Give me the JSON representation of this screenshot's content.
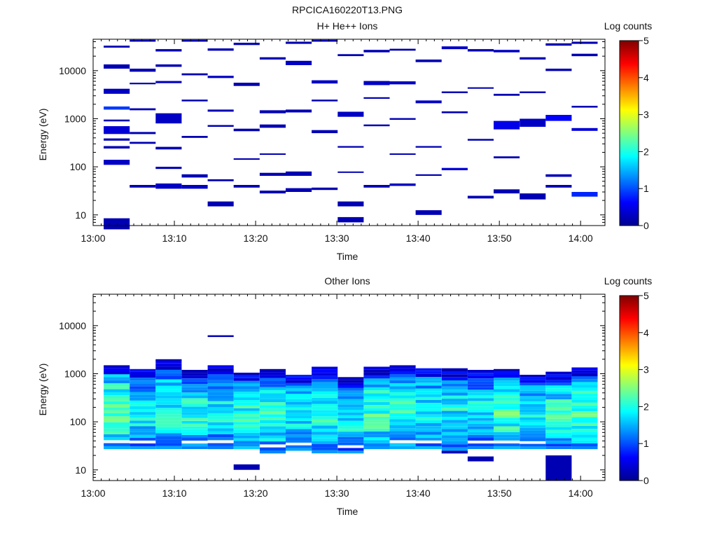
{
  "figure_title": "RPCICA160220T13.PNG",
  "colorbar": {
    "label": "Log counts",
    "ticks": [
      "0",
      "1",
      "2",
      "3",
      "4",
      "5"
    ],
    "stops": [
      "#00008f",
      "#0000ff",
      "#0080ff",
      "#00ffff",
      "#80ff80",
      "#ffff00",
      "#ff8000",
      "#ff0000",
      "#800000"
    ]
  },
  "chart_data": [
    {
      "type": "heatmap",
      "title": "H+ He++ Ions",
      "xlabel": "Time",
      "ylabel": "Energy (eV)",
      "x_ticks": [
        "13:00",
        "13:10",
        "13:20",
        "13:30",
        "13:40",
        "13:50",
        "14:00"
      ],
      "y_ticks": [
        "10",
        "100",
        "1000",
        "10000"
      ],
      "ylim": [
        6,
        45000
      ],
      "y_scale": "log",
      "xlim_minutes": [
        0,
        63
      ],
      "z_label": "Log counts",
      "z_range": [
        0,
        5
      ],
      "cells": [
        [
          1.3,
          4.5,
          5,
          8.5,
          0.2
        ],
        [
          1.3,
          4.5,
          110,
          140,
          0.3
        ],
        [
          1.3,
          4.5,
          480,
          700,
          0.4
        ],
        [
          1.3,
          4.5,
          3300,
          4200,
          0.3
        ],
        [
          1.3,
          4.5,
          1550,
          1800,
          0.9
        ],
        [
          1.3,
          4.5,
          11000,
          13500,
          0.2
        ],
        [
          1.3,
          4.5,
          240,
          270,
          0.2
        ],
        [
          1.3,
          4.5,
          350,
          390,
          0.2
        ],
        [
          1.3,
          4.5,
          880,
          960,
          0.2
        ],
        [
          1.3,
          4.5,
          30000,
          33000,
          0.2
        ],
        [
          4.5,
          7.7,
          37,
          42,
          0.2
        ],
        [
          4.5,
          7.7,
          9500,
          11000,
          0.2
        ],
        [
          4.5,
          7.7,
          40000,
          44000,
          0.2
        ],
        [
          4.5,
          7.7,
          480,
          530,
          0.2
        ],
        [
          4.5,
          7.7,
          300,
          330,
          0.2
        ],
        [
          4.5,
          7.7,
          1500,
          1650,
          0.2
        ],
        [
          4.5,
          7.7,
          5200,
          5600,
          0.2
        ],
        [
          7.7,
          10.9,
          35,
          45,
          0.3
        ],
        [
          7.7,
          10.9,
          800,
          1300,
          0.3
        ],
        [
          7.7,
          10.9,
          230,
          260,
          0.2
        ],
        [
          7.7,
          10.9,
          5500,
          6100,
          0.3
        ],
        [
          7.7,
          10.9,
          25000,
          28000,
          0.2
        ],
        [
          7.7,
          10.9,
          12000,
          13500,
          0.2
        ],
        [
          7.7,
          10.9,
          90,
          100,
          0.2
        ],
        [
          10.9,
          14.1,
          35,
          42,
          0.3
        ],
        [
          10.9,
          14.1,
          60,
          70,
          0.2
        ],
        [
          10.9,
          14.1,
          400,
          440,
          0.2
        ],
        [
          10.9,
          14.1,
          2300,
          2500,
          0.2
        ],
        [
          10.9,
          14.1,
          40000,
          44000,
          0.2
        ],
        [
          10.9,
          14.1,
          8000,
          8800,
          0.2
        ],
        [
          14.1,
          17.3,
          15,
          19,
          0.2
        ],
        [
          14.1,
          17.3,
          50,
          55,
          0.2
        ],
        [
          14.1,
          17.3,
          680,
          740,
          0.2
        ],
        [
          14.1,
          17.3,
          7000,
          7800,
          0.3
        ],
        [
          14.1,
          17.3,
          26000,
          29000,
          0.2
        ],
        [
          14.1,
          17.3,
          1400,
          1550,
          0.2
        ],
        [
          17.3,
          20.5,
          37,
          42,
          0.2
        ],
        [
          17.3,
          20.5,
          140,
          150,
          0.2
        ],
        [
          17.3,
          20.5,
          4800,
          5600,
          0.2
        ],
        [
          17.3,
          20.5,
          34000,
          38000,
          0.2
        ],
        [
          17.3,
          20.5,
          550,
          620,
          0.2
        ],
        [
          20.5,
          23.7,
          28,
          32,
          0.2
        ],
        [
          20.5,
          23.7,
          65,
          75,
          0.2
        ],
        [
          20.5,
          23.7,
          180,
          190,
          0.2
        ],
        [
          20.5,
          23.7,
          1300,
          1500,
          0.2
        ],
        [
          20.5,
          23.7,
          17000,
          19000,
          0.2
        ],
        [
          20.5,
          23.7,
          650,
          760,
          0.2
        ],
        [
          23.7,
          26.9,
          30,
          36,
          0.2
        ],
        [
          23.7,
          26.9,
          65,
          80,
          0.2
        ],
        [
          23.7,
          26.9,
          1350,
          1550,
          0.2
        ],
        [
          23.7,
          26.9,
          13000,
          16000,
          0.3
        ],
        [
          23.7,
          26.9,
          36000,
          40000,
          0.2
        ],
        [
          26.9,
          30.1,
          33,
          37,
          0.2
        ],
        [
          26.9,
          30.1,
          500,
          580,
          0.2
        ],
        [
          26.9,
          30.1,
          5400,
          6300,
          0.3
        ],
        [
          26.9,
          30.1,
          40000,
          44000,
          0.2
        ],
        [
          26.9,
          30.1,
          2300,
          2500,
          0.2
        ],
        [
          30.1,
          33.3,
          7,
          9,
          0.2
        ],
        [
          30.1,
          33.3,
          15,
          19,
          0.2
        ],
        [
          30.1,
          33.3,
          1100,
          1400,
          0.3
        ],
        [
          30.1,
          33.3,
          250,
          270,
          0.2
        ],
        [
          30.1,
          33.3,
          20000,
          22000,
          0.2
        ],
        [
          30.1,
          33.3,
          75,
          80,
          0.2
        ],
        [
          33.3,
          36.5,
          37,
          42,
          0.2
        ],
        [
          33.3,
          36.5,
          5000,
          6100,
          0.3
        ],
        [
          33.3,
          36.5,
          24000,
          27000,
          0.2
        ],
        [
          33.3,
          36.5,
          2600,
          2800,
          0.2
        ],
        [
          33.3,
          36.5,
          700,
          760,
          0.2
        ],
        [
          36.5,
          39.7,
          40,
          45,
          0.3
        ],
        [
          36.5,
          39.7,
          5200,
          6000,
          0.3
        ],
        [
          36.5,
          39.7,
          180,
          190,
          0.2
        ],
        [
          36.5,
          39.7,
          950,
          1030,
          0.2
        ],
        [
          36.5,
          39.7,
          26000,
          28500,
          0.2
        ],
        [
          39.7,
          42.9,
          10,
          12.5,
          0.2
        ],
        [
          39.7,
          42.9,
          65,
          70,
          0.2
        ],
        [
          39.7,
          42.9,
          2100,
          2400,
          0.3
        ],
        [
          39.7,
          42.9,
          15000,
          17000,
          0.2
        ],
        [
          39.7,
          42.9,
          250,
          270,
          0.2
        ],
        [
          42.9,
          46.1,
          85,
          95,
          0.4
        ],
        [
          42.9,
          46.1,
          28000,
          32000,
          0.3
        ],
        [
          42.9,
          46.1,
          3400,
          3700,
          0.2
        ],
        [
          42.9,
          46.1,
          1300,
          1420,
          0.2
        ],
        [
          46.1,
          49.3,
          22,
          25,
          0.2
        ],
        [
          46.1,
          49.3,
          350,
          380,
          0.2
        ],
        [
          46.1,
          49.3,
          25000,
          28000,
          0.2
        ],
        [
          46.1,
          49.3,
          4200,
          4500,
          0.2
        ],
        [
          49.3,
          52.5,
          28,
          34,
          0.2
        ],
        [
          49.3,
          52.5,
          600,
          900,
          0.5
        ],
        [
          49.3,
          52.5,
          24000,
          27000,
          0.3
        ],
        [
          49.3,
          52.5,
          3000,
          3300,
          0.2
        ],
        [
          49.3,
          52.5,
          150,
          165,
          0.2
        ],
        [
          52.5,
          55.7,
          21,
          28,
          0.2
        ],
        [
          52.5,
          55.7,
          680,
          1000,
          0.3
        ],
        [
          52.5,
          55.7,
          17000,
          19000,
          0.2
        ],
        [
          52.5,
          55.7,
          3400,
          3700,
          0.2
        ],
        [
          55.7,
          58.9,
          37,
          42,
          0.2
        ],
        [
          55.7,
          58.9,
          62,
          70,
          0.2
        ],
        [
          55.7,
          58.9,
          900,
          1200,
          0.6
        ],
        [
          55.7,
          58.9,
          33000,
          37000,
          0.2
        ],
        [
          55.7,
          58.9,
          9800,
          11000,
          0.2
        ],
        [
          58.9,
          62.1,
          24,
          30,
          0.8
        ],
        [
          58.9,
          62.1,
          560,
          640,
          0.4
        ],
        [
          58.9,
          62.1,
          36000,
          40000,
          0.2
        ],
        [
          58.9,
          62.1,
          20000,
          22500,
          0.2
        ],
        [
          58.9,
          62.1,
          1700,
          1850,
          0.2
        ]
      ]
    },
    {
      "type": "heatmap",
      "title": "Other Ions",
      "xlabel": "Time",
      "ylabel": "Energy (eV)",
      "x_ticks": [
        "13:00",
        "13:10",
        "13:20",
        "13:30",
        "13:40",
        "13:50",
        "14:00"
      ],
      "y_ticks": [
        "10",
        "100",
        "1000",
        "10000"
      ],
      "ylim": [
        6,
        45000
      ],
      "y_scale": "log",
      "xlim_minutes": [
        0,
        63
      ],
      "z_label": "Log counts",
      "z_range": [
        0,
        5
      ],
      "columns": [
        {
          "t0": 1.3,
          "t1": 4.5,
          "bottom": 27,
          "top": 1500,
          "peak": 2.5
        },
        {
          "t0": 4.5,
          "t1": 7.7,
          "bottom": 27,
          "top": 1250,
          "peak": 2.0
        },
        {
          "t0": 7.7,
          "t1": 10.9,
          "bottom": 27,
          "top": 1900,
          "peak": 2.1
        },
        {
          "t0": 10.9,
          "t1": 14.1,
          "bottom": 27,
          "top": 1200,
          "peak": 2.2
        },
        {
          "t0": 14.1,
          "t1": 17.3,
          "bottom": 27,
          "top": 1500,
          "peak": 2.0
        },
        {
          "t0": 17.3,
          "t1": 20.5,
          "bottom": 27,
          "top": 1050,
          "peak": 2.1
        },
        {
          "t0": 20.5,
          "t1": 23.7,
          "bottom": 22,
          "top": 1250,
          "peak": 2.2
        },
        {
          "t0": 23.7,
          "t1": 26.9,
          "bottom": 25,
          "top": 950,
          "peak": 2.0
        },
        {
          "t0": 26.9,
          "t1": 30.1,
          "bottom": 22,
          "top": 1400,
          "peak": 2.1
        },
        {
          "t0": 30.1,
          "t1": 33.3,
          "bottom": 22,
          "top": 850,
          "peak": 2.0
        },
        {
          "t0": 33.3,
          "t1": 36.5,
          "bottom": 27,
          "top": 1400,
          "peak": 2.3
        },
        {
          "t0": 36.5,
          "t1": 39.7,
          "bottom": 27,
          "top": 1500,
          "peak": 2.2
        },
        {
          "t0": 39.7,
          "t1": 42.9,
          "bottom": 27,
          "top": 1300,
          "peak": 2.1
        },
        {
          "t0": 42.9,
          "t1": 46.1,
          "bottom": 22,
          "top": 1300,
          "peak": 2.0
        },
        {
          "t0": 46.1,
          "t1": 49.3,
          "bottom": 27,
          "top": 1200,
          "peak": 2.0
        },
        {
          "t0": 49.3,
          "t1": 52.5,
          "bottom": 27,
          "top": 1250,
          "peak": 2.3
        },
        {
          "t0": 52.5,
          "t1": 55.7,
          "bottom": 27,
          "top": 950,
          "peak": 2.1
        },
        {
          "t0": 55.7,
          "t1": 58.9,
          "bottom": 27,
          "top": 1100,
          "peak": 2.2
        },
        {
          "t0": 58.9,
          "t1": 62.1,
          "bottom": 27,
          "top": 1350,
          "peak": 2.4
        }
      ],
      "extra_cells": [
        [
          14.1,
          17.3,
          5800,
          6300,
          0.2
        ],
        [
          7.7,
          10.9,
          1850,
          2000,
          0.2
        ],
        [
          17.3,
          20.5,
          10,
          13,
          0.2
        ],
        [
          46.1,
          49.3,
          15,
          19,
          0.2
        ],
        [
          55.7,
          58.9,
          6,
          20,
          0.2
        ],
        [
          42.9,
          46.1,
          22,
          25,
          0.2
        ]
      ]
    }
  ]
}
